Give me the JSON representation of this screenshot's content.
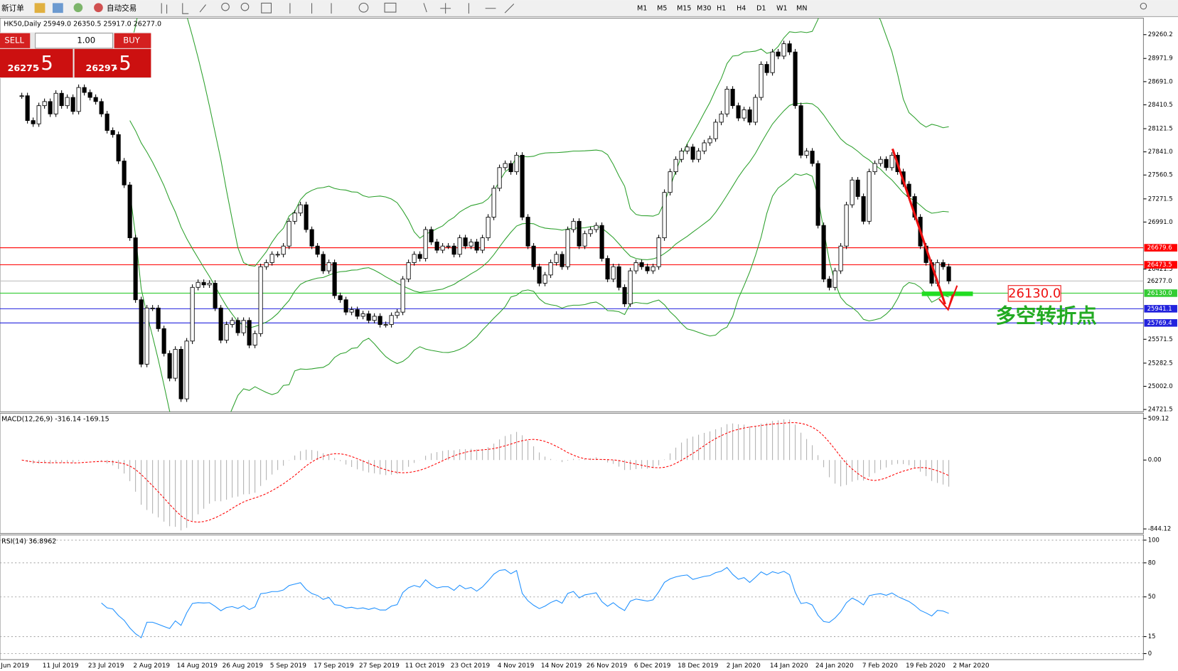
{
  "toolbar": {
    "new_order": "新订单",
    "auto_trading": "自动交易",
    "periods": [
      "M1",
      "M5",
      "M15",
      "M30",
      "H1",
      "H4",
      "D1",
      "W1",
      "MN"
    ]
  },
  "one_click": {
    "sell": "SELL",
    "buy": "BUY",
    "lots": "1.00",
    "bid_main": "26275",
    "bid_frac": ".5",
    "ask_main": "26297",
    "ask_frac": ".5"
  },
  "chart_data": {
    "type": "candlestick",
    "title": "HK50,Daily 25949.0 26350.5 25917.0 26277.0",
    "closes": [
      28520,
      28220,
      28180,
      28400,
      28450,
      28300,
      28550,
      28400,
      28500,
      28330,
      28620,
      28560,
      28500,
      28450,
      28300,
      28100,
      28050,
      27730,
      27440,
      26800,
      26050,
      25270,
      25950,
      25950,
      25700,
      25400,
      25100,
      25450,
      24850,
      25550,
      26200,
      26260,
      26230,
      26250,
      25950,
      25560,
      25750,
      25800,
      25650,
      25800,
      25500,
      25640,
      26450,
      26500,
      26600,
      26600,
      26700,
      27000,
      27100,
      27200,
      26900,
      26700,
      26600,
      26400,
      26500,
      26100,
      26050,
      25900,
      25930,
      25850,
      25880,
      25800,
      25850,
      25750,
      25750,
      25860,
      25900,
      26300,
      26500,
      26600,
      26550,
      26900,
      26750,
      26650,
      26700,
      26700,
      26600,
      26800,
      26700,
      26750,
      26650,
      26800,
      27050,
      27400,
      27650,
      27700,
      27600,
      27800,
      27050,
      26700,
      26450,
      26250,
      26350,
      26500,
      26600,
      26450,
      26900,
      27000,
      26700,
      26850,
      26900,
      26950,
      26550,
      26300,
      26450,
      26200,
      26000,
      26400,
      26500,
      26450,
      26400,
      26450,
      26800,
      27350,
      27600,
      27750,
      27850,
      27900,
      27750,
      27850,
      27950,
      28000,
      28200,
      28300,
      28600,
      28400,
      28250,
      28350,
      28200,
      28500,
      28900,
      28800,
      29050,
      29000,
      29150,
      29050,
      28400,
      27800,
      27850,
      27700,
      26950,
      26300,
      26200,
      26400,
      26700,
      27200,
      27500,
      27300,
      27000,
      27600,
      27700,
      27750,
      27650,
      27800,
      27600,
      27450,
      27300,
      27050,
      26700,
      26500,
      26250,
      26500,
      26450,
      26277
    ],
    "up_color": "#ffffff",
    "down_color": "#000000",
    "band_color": "#2ca02c",
    "ylim": [
      24694,
      29460
    ],
    "yticks": [
      29260.2,
      28971.9,
      {
        "value": 28691.0,
        "label": "28691.0"
      },
      28410.5,
      28121.5,
      {
        "value": 27841.0,
        "label": "27841.0"
      },
      27560.5,
      27271.5,
      {
        "value": 26991.0,
        "label": "26991.0"
      },
      26421.5,
      25571.5,
      25282.5,
      {
        "value": 25002.0,
        "label": "25002.0"
      },
      24721.5
    ],
    "hlines": [
      {
        "value": 26679.6,
        "color": "#ff0000"
      },
      {
        "value": 26473.5,
        "color": "#ff0000"
      },
      {
        "value": 26277.0,
        "label": "26277.0",
        "color": "#c0c0c0"
      },
      {
        "value": 26130.0,
        "label": "26130.0",
        "color": "#33cc33"
      },
      {
        "value": 25941.1,
        "color": "#2222dd"
      },
      {
        "value": 25769.4,
        "color": "#2222dd"
      }
    ],
    "annotations": [
      "26130.0",
      "多空转折点"
    ],
    "dates": [
      "Jun 2019",
      "11 Jul 2019",
      "23 Jul 2019",
      "2 Aug 2019",
      "14 Aug 2019",
      "26 Aug 2019",
      "5 Sep 2019",
      "17 Sep 2019",
      "27 Sep 2019",
      "11 Oct 2019",
      "23 Oct 2019",
      "4 Nov 2019",
      "14 Nov 2019",
      "26 Nov 2019",
      "6 Dec 2019",
      "18 Dec 2019",
      "2 Jan 2020",
      "14 Jan 2020",
      "24 Jan 2020",
      "7 Feb 2020",
      "19 Feb 2020",
      "2 Mar 2020"
    ],
    "macd": {
      "label": "MACD(12,26,9) -316.14 -169.15",
      "ylim": [
        -899.4,
        573.6
      ],
      "yticks": [
        509.12,
        {
          "value": 0,
          "label": "0.00"
        },
        -844.12
      ],
      "hist_color": "#b0b0b0",
      "signal_color": "#ff0000"
    },
    "rsi": {
      "label": "RSI(14) 36.8962",
      "ylim": [
        -5.3,
        104.6
      ],
      "yticks": [
        100,
        80,
        50,
        15,
        0
      ],
      "color": "#1e90ff"
    }
  }
}
